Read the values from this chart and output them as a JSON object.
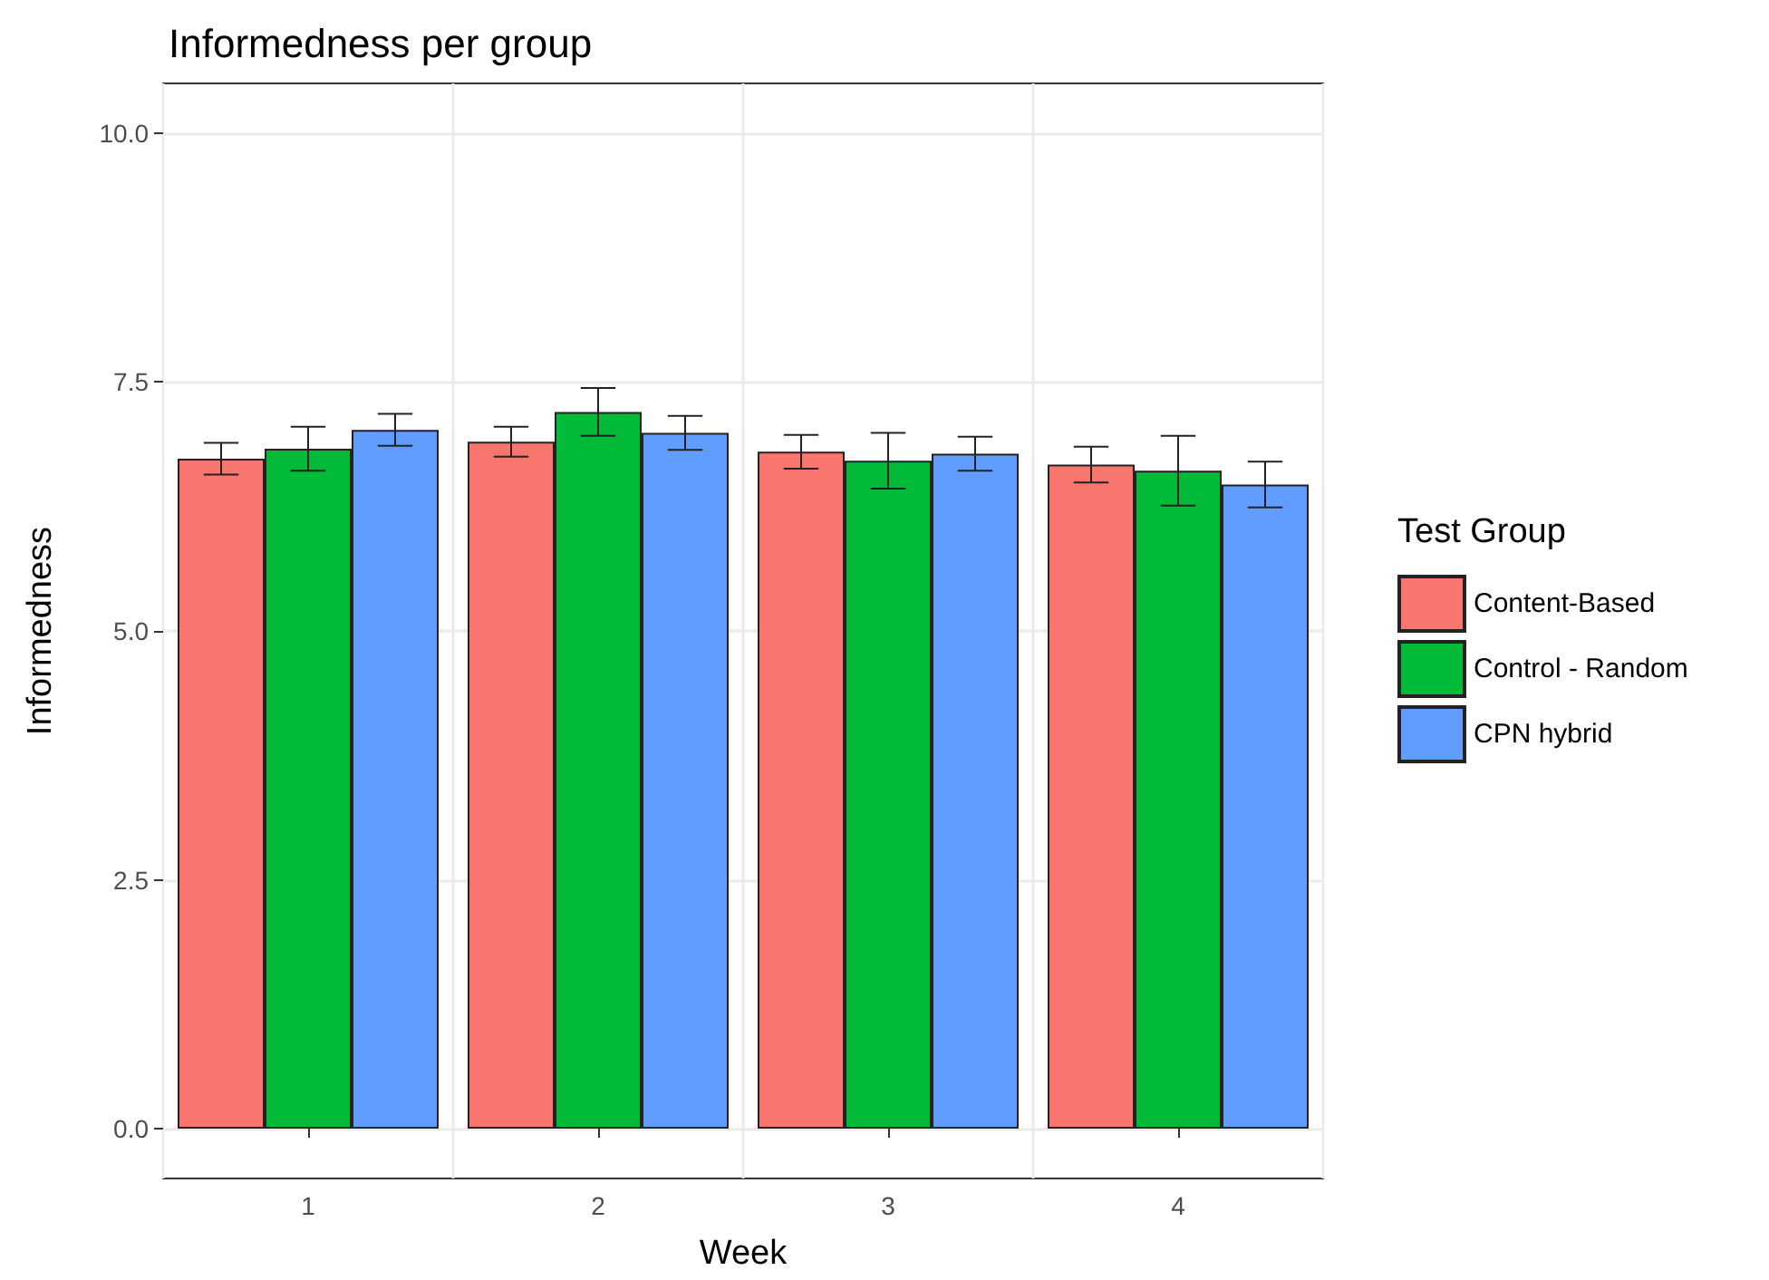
{
  "chart_data": {
    "type": "bar",
    "title": "Informedness per group",
    "xlabel": "Week",
    "ylabel": "Informedness",
    "legend_title": "Test Group",
    "categories": [
      "1",
      "2",
      "3",
      "4"
    ],
    "series": [
      {
        "name": "Content-Based",
        "color": "#f8766d",
        "values": [
          6.73,
          6.9,
          6.8,
          6.67
        ],
        "errors": [
          0.16,
          0.15,
          0.17,
          0.18
        ]
      },
      {
        "name": "Control - Random",
        "color": "#00ba38",
        "values": [
          6.83,
          7.2,
          6.71,
          6.61
        ],
        "errors": [
          0.22,
          0.24,
          0.28,
          0.35
        ]
      },
      {
        "name": "CPN hybrid",
        "color": "#619cff",
        "values": [
          7.02,
          6.99,
          6.78,
          6.47
        ],
        "errors": [
          0.16,
          0.17,
          0.17,
          0.23
        ]
      }
    ],
    "ylim": [
      -0.5,
      10.5
    ],
    "yticks": [
      {
        "value": 0,
        "label": "0.0"
      },
      {
        "value": 2.5,
        "label": "2.5"
      },
      {
        "value": 5,
        "label": "5.0"
      },
      {
        "value": 7.5,
        "label": "7.5"
      },
      {
        "value": 10,
        "label": "10.0"
      }
    ],
    "grid": true,
    "legend": "right"
  }
}
